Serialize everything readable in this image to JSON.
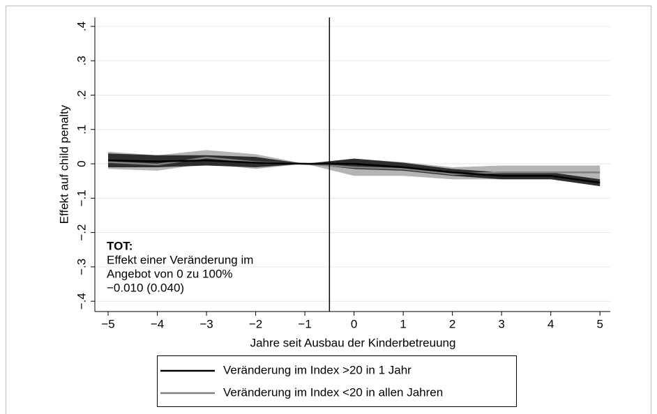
{
  "chart_data": {
    "type": "line",
    "xlabel": "Jahre seit Ausbau der Kinderbetreuung",
    "ylabel": "Effekt auf child penalty",
    "x": [
      -5,
      -4,
      -3,
      -2,
      -1,
      0,
      1,
      2,
      3,
      4,
      5
    ],
    "xlim": [
      -5.27,
      5.21
    ],
    "ylim": [
      -0.43,
      0.42
    ],
    "xticks": [
      {
        "value": -5,
        "label": "−5"
      },
      {
        "value": -4,
        "label": "−4"
      },
      {
        "value": -3,
        "label": "−3"
      },
      {
        "value": -2,
        "label": "−2"
      },
      {
        "value": -1,
        "label": "−1"
      },
      0,
      1,
      2,
      3,
      4,
      5
    ],
    "yticks": [
      {
        "value": 0.4,
        "label": ".4"
      },
      {
        "value": 0.3,
        "label": ".3"
      },
      {
        "value": 0.2,
        "label": ".2"
      },
      {
        "value": 0.1,
        "label": ".1"
      },
      0,
      {
        "value": -0.1,
        "label": "−.1"
      },
      {
        "value": -0.2,
        "label": "−.2"
      },
      {
        "value": -0.3,
        "label": "−.3"
      },
      {
        "value": -0.4,
        "label": "−.4"
      }
    ],
    "grid": true,
    "vline": -0.5,
    "series": [
      {
        "name": "Veränderung im Index <20 in allen Jahren",
        "color": "#808080",
        "band_color": "#b4b4b4",
        "values": [
          0.005,
          -0.002,
          0.018,
          0.005,
          0,
          -0.01,
          -0.015,
          -0.03,
          -0.025,
          -0.025,
          -0.025
        ],
        "lower": [
          -0.015,
          -0.02,
          0,
          -0.015,
          0,
          -0.035,
          -0.035,
          -0.045,
          -0.045,
          -0.045,
          -0.045
        ],
        "upper": [
          0.035,
          0.025,
          0.04,
          0.028,
          0,
          0.015,
          0.005,
          -0.01,
          -0.005,
          -0.005,
          -0.005
        ]
      },
      {
        "name": "Veränderung im Index >20 in 1 Jahr",
        "color": "#000000",
        "band_color": "#2e2e2e",
        "values": [
          0.01,
          0.007,
          0.01,
          0.003,
          0,
          0,
          -0.01,
          -0.025,
          -0.035,
          -0.035,
          -0.055
        ],
        "lower": [
          -0.01,
          -0.01,
          -0.005,
          -0.01,
          0,
          -0.015,
          -0.02,
          -0.035,
          -0.045,
          -0.045,
          -0.065
        ],
        "upper": [
          0.03,
          0.025,
          0.025,
          0.02,
          0,
          0.015,
          0.003,
          -0.015,
          -0.025,
          -0.025,
          -0.045
        ]
      }
    ],
    "legend_order": [
      1,
      0
    ],
    "annotation": {
      "title": "TOT:",
      "lines": [
        "Effekt einer Veränderung im",
        "Angebot von 0 zu 100%",
        "−0.010 (0.040)"
      ]
    }
  }
}
